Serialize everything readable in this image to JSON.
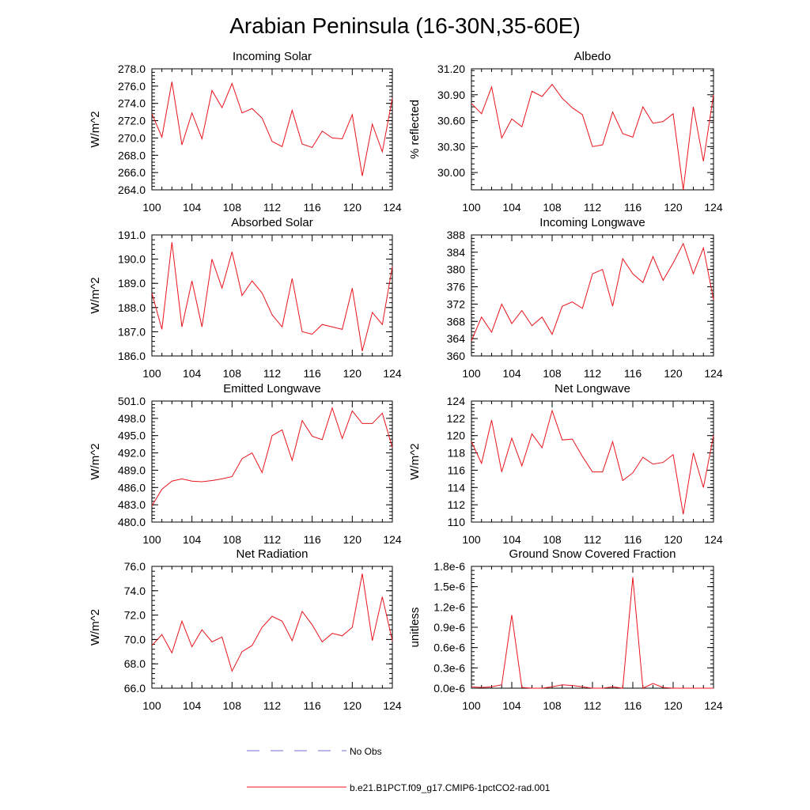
{
  "figure": {
    "title": "Arabian Peninsula (16-30N,35-60E)",
    "line_color": "#e8141c",
    "obs_color": "#6f6fd0"
  },
  "legend": {
    "obs_label": "No Obs",
    "model_label": "b.e21.B1PCT.f09_g17.CMIP6-1pctCO2-rad.001"
  },
  "chart_data": [
    {
      "type": "line",
      "title": "Incoming Solar",
      "ylabel": "W/m^2",
      "xlim": [
        100,
        124
      ],
      "xticks": [
        "100",
        "104",
        "108",
        "112",
        "116",
        "120",
        "124"
      ],
      "ylim": [
        264,
        278
      ],
      "yticks": [
        "264.0",
        "266.0",
        "268.0",
        "270.0",
        "272.0",
        "274.0",
        "276.0",
        "278.0"
      ],
      "x": [
        100,
        101,
        102,
        103,
        104,
        105,
        106,
        107,
        108,
        109,
        110,
        111,
        112,
        113,
        114,
        115,
        116,
        117,
        118,
        119,
        120,
        121,
        122,
        123,
        124
      ],
      "series": [
        {
          "values": [
            272.8,
            270.1,
            276.5,
            269.2,
            272.9,
            269.9,
            275.5,
            273.5,
            276.3,
            272.9,
            273.4,
            272.3,
            269.6,
            269.0,
            273.2,
            269.3,
            268.9,
            270.8,
            270.0,
            269.9,
            272.7,
            265.6,
            271.6,
            268.4,
            274.6
          ]
        }
      ]
    },
    {
      "type": "line",
      "title": "Albedo",
      "ylabel": "% reflected",
      "xlim": [
        100,
        124
      ],
      "xticks": [
        "100",
        "104",
        "108",
        "112",
        "116",
        "120",
        "124"
      ],
      "ylim": [
        29.8,
        31.2
      ],
      "yticks": [
        "30.00",
        "30.30",
        "30.60",
        "30.90",
        "31.20"
      ],
      "x": [
        100,
        101,
        102,
        103,
        104,
        105,
        106,
        107,
        108,
        109,
        110,
        111,
        112,
        113,
        114,
        115,
        116,
        117,
        118,
        119,
        120,
        121,
        122,
        123,
        124
      ],
      "series": [
        {
          "values": [
            30.8,
            30.68,
            30.99,
            30.4,
            30.62,
            30.53,
            30.94,
            30.88,
            31.02,
            30.86,
            30.75,
            30.67,
            30.3,
            30.32,
            30.7,
            30.45,
            30.41,
            30.76,
            30.57,
            30.59,
            30.68,
            29.8,
            30.76,
            30.13,
            30.9
          ]
        }
      ]
    },
    {
      "type": "line",
      "title": "Absorbed Solar",
      "ylabel": "W/m^2",
      "xlim": [
        100,
        124
      ],
      "xticks": [
        "100",
        "104",
        "108",
        "112",
        "116",
        "120",
        "124"
      ],
      "ylim": [
        186,
        191
      ],
      "yticks": [
        "186.0",
        "187.0",
        "188.0",
        "189.0",
        "190.0",
        "191.0"
      ],
      "x": [
        100,
        101,
        102,
        103,
        104,
        105,
        106,
        107,
        108,
        109,
        110,
        111,
        112,
        113,
        114,
        115,
        116,
        117,
        118,
        119,
        120,
        121,
        122,
        123,
        124
      ],
      "series": [
        {
          "values": [
            188.6,
            187.1,
            190.7,
            187.2,
            189.1,
            187.2,
            190.0,
            188.8,
            190.3,
            188.5,
            189.1,
            188.6,
            187.7,
            187.2,
            189.2,
            187.0,
            186.9,
            187.3,
            187.2,
            187.1,
            188.8,
            186.2,
            187.8,
            187.3,
            189.7
          ]
        }
      ]
    },
    {
      "type": "line",
      "title": "Incoming Longwave",
      "ylabel": "",
      "xlim": [
        100,
        124
      ],
      "xticks": [
        "100",
        "104",
        "108",
        "112",
        "116",
        "120",
        "124"
      ],
      "ylim": [
        360,
        388
      ],
      "yticks": [
        "360",
        "364",
        "368",
        "372",
        "376",
        "380",
        "384",
        "388"
      ],
      "x": [
        100,
        101,
        102,
        103,
        104,
        105,
        106,
        107,
        108,
        109,
        110,
        111,
        112,
        113,
        114,
        115,
        116,
        117,
        118,
        119,
        120,
        121,
        122,
        123,
        124
      ],
      "series": [
        {
          "values": [
            363.5,
            369.0,
            365.5,
            372.0,
            367.5,
            370.5,
            367.0,
            369.0,
            365.0,
            371.5,
            372.5,
            371.0,
            379.0,
            380.0,
            371.5,
            382.5,
            379.0,
            377.0,
            383.0,
            377.5,
            381.5,
            386.0,
            379.0,
            385.0,
            373.0
          ]
        }
      ]
    },
    {
      "type": "line",
      "title": "Emitted Longwave",
      "ylabel": "W/m^2",
      "xlim": [
        100,
        124
      ],
      "xticks": [
        "100",
        "104",
        "108",
        "112",
        "116",
        "120",
        "124"
      ],
      "ylim": [
        480,
        501
      ],
      "yticks": [
        "480.0",
        "483.0",
        "486.0",
        "489.0",
        "492.0",
        "495.0",
        "498.0",
        "501.0"
      ],
      "x": [
        100,
        101,
        102,
        103,
        104,
        105,
        106,
        107,
        108,
        109,
        110,
        111,
        112,
        113,
        114,
        115,
        116,
        117,
        118,
        119,
        120,
        121,
        122,
        123,
        124
      ],
      "series": [
        {
          "values": [
            482.8,
            485.7,
            487.1,
            487.5,
            487.1,
            487.0,
            487.2,
            487.5,
            487.9,
            491.0,
            492.0,
            488.6,
            495.0,
            496.0,
            490.7,
            497.6,
            494.9,
            494.3,
            499.8,
            494.5,
            499.3,
            497.1,
            497.1,
            498.9,
            492.9
          ]
        }
      ]
    },
    {
      "type": "line",
      "title": "Net Longwave",
      "ylabel": "W/m^2",
      "xlim": [
        100,
        124
      ],
      "xticks": [
        "100",
        "104",
        "108",
        "112",
        "116",
        "120",
        "124"
      ],
      "ylim": [
        110,
        124
      ],
      "yticks": [
        "110",
        "112",
        "114",
        "116",
        "118",
        "120",
        "122",
        "124"
      ],
      "x": [
        100,
        101,
        102,
        103,
        104,
        105,
        106,
        107,
        108,
        109,
        110,
        111,
        112,
        113,
        114,
        115,
        116,
        117,
        118,
        119,
        120,
        121,
        122,
        123,
        124
      ],
      "series": [
        {
          "values": [
            119.3,
            116.8,
            121.8,
            115.8,
            119.7,
            116.5,
            120.2,
            118.6,
            122.9,
            119.5,
            119.6,
            117.6,
            115.8,
            115.8,
            119.3,
            114.8,
            115.7,
            117.5,
            116.7,
            116.9,
            117.8,
            110.9,
            118.0,
            114.0,
            120.0
          ]
        }
      ]
    },
    {
      "type": "line",
      "title": "Net Radiation",
      "ylabel": "W/m^2",
      "xlim": [
        100,
        124
      ],
      "xticks": [
        "100",
        "104",
        "108",
        "112",
        "116",
        "120",
        "124"
      ],
      "ylim": [
        66,
        76
      ],
      "yticks": [
        "66.0",
        "68.0",
        "70.0",
        "72.0",
        "74.0",
        "76.0"
      ],
      "x": [
        100,
        101,
        102,
        103,
        104,
        105,
        106,
        107,
        108,
        109,
        110,
        111,
        112,
        113,
        114,
        115,
        116,
        117,
        118,
        119,
        120,
        121,
        122,
        123,
        124
      ],
      "series": [
        {
          "values": [
            69.5,
            70.4,
            68.9,
            71.5,
            69.4,
            70.8,
            69.8,
            70.2,
            67.4,
            69.0,
            69.5,
            71.0,
            71.9,
            71.5,
            69.9,
            72.3,
            71.2,
            69.8,
            70.5,
            70.3,
            71.0,
            75.4,
            69.9,
            73.5,
            69.9
          ]
        }
      ]
    },
    {
      "type": "line",
      "title": "Ground Snow Covered Fraction",
      "ylabel": "unitless",
      "xlim": [
        100,
        124
      ],
      "xticks": [
        "100",
        "104",
        "108",
        "112",
        "116",
        "120",
        "124"
      ],
      "ylim": [
        0,
        1.8e-06
      ],
      "yticks": [
        "0.0e-6",
        "0.3e-6",
        "0.6e-6",
        "0.9e-6",
        "1.2e-6",
        "1.5e-6",
        "1.8e-6"
      ],
      "x": [
        100,
        101,
        102,
        103,
        104,
        105,
        106,
        107,
        108,
        109,
        110,
        111,
        112,
        113,
        114,
        115,
        116,
        117,
        118,
        119,
        120,
        121,
        122,
        123,
        124
      ],
      "series": [
        {
          "values": [
            2e-08,
            1e-08,
            2e-08,
            5e-08,
            1.08e-06,
            1e-08,
            0,
            0,
            2e-08,
            5e-08,
            4e-08,
            2e-08,
            0,
            0,
            2e-08,
            0,
            1.64e-06,
            0,
            7e-08,
            1e-08,
            0,
            0,
            0,
            0,
            0
          ]
        }
      ]
    }
  ]
}
